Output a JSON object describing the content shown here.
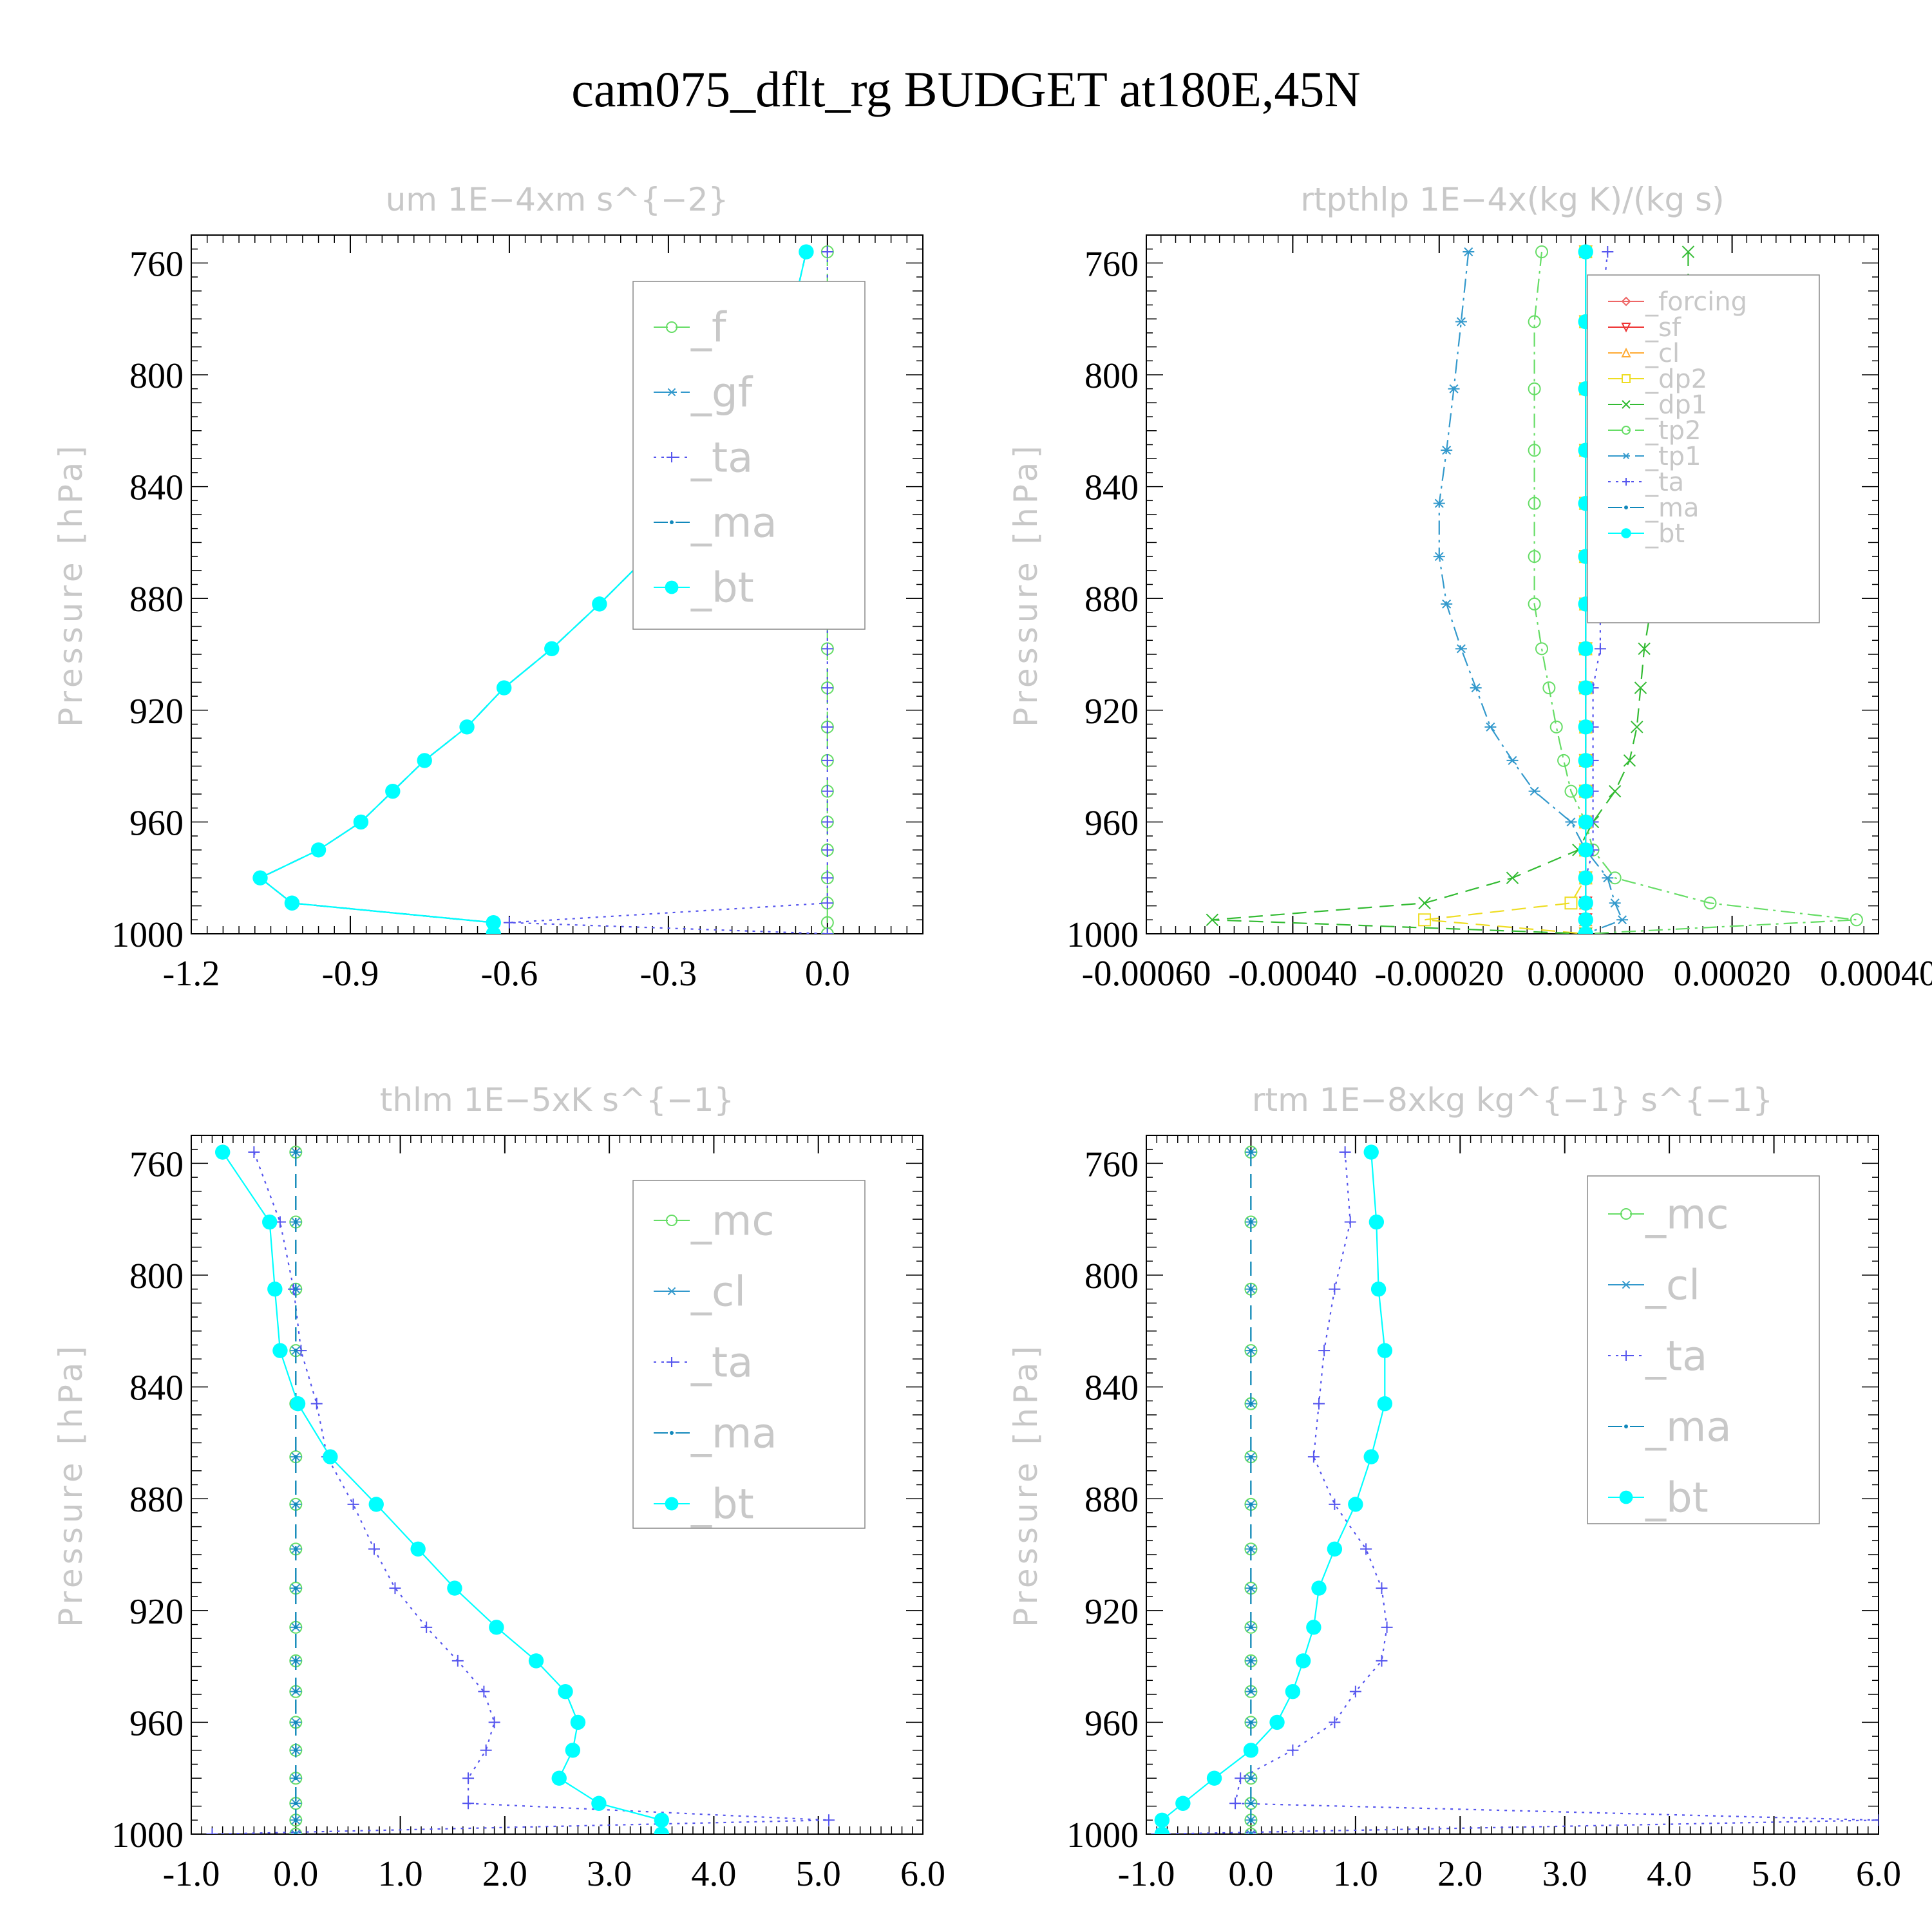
{
  "figure": {
    "title": "cam075_dflt_rg  BUDGET at180E,45N"
  },
  "chart_data": [
    {
      "type": "line",
      "title": "um   1E−4xm s^{−2}",
      "ylabel": "Pressure [hPa]",
      "xlabel": "",
      "ylim": [
        750,
        1000
      ],
      "xlim": [
        -1.2,
        0.18
      ],
      "yticks": [
        760,
        800,
        840,
        880,
        920,
        960,
        1000
      ],
      "xticks": [
        "-1.2",
        "-0.9",
        "-0.6",
        "-0.3",
        "0.0"
      ],
      "legend_placement": "top-right",
      "y": [
        756,
        781,
        805,
        827,
        846,
        865,
        882,
        898,
        912,
        926,
        938,
        949,
        960,
        970,
        980,
        989,
        996,
        1000
      ],
      "series": [
        {
          "name": "_f",
          "color": "#66dd66",
          "style": "dash",
          "marker": "circle",
          "values": [
            0,
            0,
            0,
            0,
            0,
            0,
            0,
            0,
            0,
            0,
            0,
            0,
            0,
            0,
            0,
            0,
            0,
            0
          ]
        },
        {
          "name": "_gf",
          "color": "#3399cc",
          "style": "dashdot",
          "marker": "star",
          "values": [
            -0.04,
            -0.07,
            -0.11,
            -0.17,
            -0.25,
            -0.34,
            -0.43,
            -0.52,
            -0.61,
            -0.68,
            -0.76,
            -0.82,
            -0.88,
            -0.96,
            -1.07,
            -1.01,
            -0.63,
            -0.63
          ]
        },
        {
          "name": "_ta",
          "color": "#5555ee",
          "style": "dot",
          "marker": "plus",
          "values": [
            0,
            0,
            0,
            0,
            0,
            0,
            0,
            0,
            0,
            0,
            0,
            0,
            0,
            0,
            0,
            0,
            -0.6,
            0
          ]
        },
        {
          "name": "_ma",
          "color": "#1188bb",
          "style": "dash",
          "marker": "dot",
          "values": [
            -0.04,
            -0.07,
            -0.11,
            -0.17,
            -0.25,
            -0.34,
            -0.43,
            -0.52,
            -0.61,
            -0.68,
            -0.76,
            -0.82,
            -0.88,
            -0.96,
            -1.07,
            -1.01,
            -0.63,
            -0.63
          ]
        },
        {
          "name": "_bt",
          "color": "#00ffff",
          "style": "solid",
          "marker": "bigdot",
          "values": [
            -0.04,
            -0.07,
            -0.11,
            -0.17,
            -0.25,
            -0.34,
            -0.43,
            -0.52,
            -0.61,
            -0.68,
            -0.76,
            -0.82,
            -0.88,
            -0.96,
            -1.07,
            -1.01,
            -0.63,
            -0.63
          ]
        }
      ]
    },
    {
      "type": "line",
      "title": "rtpthlp   1E−4x(kg K)/(kg s)",
      "ylabel": "Pressure [hPa]",
      "xlabel": "",
      "ylim": [
        750,
        1000
      ],
      "xlim": [
        -0.0006,
        0.0004
      ],
      "yticks": [
        760,
        800,
        840,
        880,
        920,
        960,
        1000
      ],
      "xticks": [
        "-0.00060",
        "-0.00040",
        "-0.00020",
        "0.00000",
        "0.00020",
        "0.00040"
      ],
      "legend_placement": "top-right",
      "y": [
        756,
        781,
        805,
        827,
        846,
        865,
        882,
        898,
        912,
        926,
        938,
        949,
        960,
        970,
        980,
        989,
        995,
        1000
      ],
      "series": [
        {
          "name": "_forcing",
          "color": "#ee6666",
          "style": "solid",
          "marker": "diamond",
          "values": [
            0,
            0,
            0,
            0,
            0,
            0,
            0,
            0,
            0,
            0,
            0,
            0,
            0,
            0,
            0,
            0,
            0,
            0
          ]
        },
        {
          "name": "_sf",
          "color": "#ee3333",
          "style": "solid",
          "marker": "triangle-down",
          "values": [
            0,
            0,
            0,
            0,
            0,
            0,
            0,
            0,
            0,
            0,
            0,
            0,
            0,
            0,
            0,
            0,
            0,
            0
          ]
        },
        {
          "name": "_cl",
          "color": "#ffaa33",
          "style": "dash",
          "marker": "triangle-up",
          "values": [
            0,
            0,
            0,
            0,
            0,
            0,
            0,
            0,
            0,
            0,
            0,
            0,
            0,
            0,
            0,
            0,
            0,
            0
          ]
        },
        {
          "name": "_dp2",
          "color": "#eedd22",
          "style": "dash",
          "marker": "square",
          "values": [
            0,
            0,
            0,
            0,
            0,
            0,
            0,
            0,
            0,
            0,
            0,
            0,
            0,
            0,
            0,
            -2e-05,
            -0.00022,
            0
          ]
        },
        {
          "name": "_dp1",
          "color": "#33bb33",
          "style": "dash",
          "marker": "x",
          "values": [
            0.00014,
            0.00014,
            0.00013,
            0.00012,
            0.00011,
            0.0001,
            9e-05,
            8e-05,
            7.5e-05,
            7e-05,
            6e-05,
            4e-05,
            1e-05,
            -1e-05,
            -0.0001,
            -0.00022,
            -0.00051,
            0
          ]
        },
        {
          "name": "_tp2",
          "color": "#66dd66",
          "style": "dashdot",
          "marker": "circle",
          "values": [
            -6e-05,
            -7e-05,
            -7e-05,
            -7e-05,
            -7e-05,
            -7e-05,
            -7e-05,
            -6e-05,
            -5e-05,
            -4e-05,
            -3e-05,
            -2e-05,
            0,
            1e-05,
            4e-05,
            0.00017,
            0.00037,
            0
          ]
        },
        {
          "name": "_tp1",
          "color": "#3399cc",
          "style": "dashdot",
          "marker": "star",
          "values": [
            -0.00016,
            -0.00017,
            -0.00018,
            -0.00019,
            -0.0002,
            -0.0002,
            -0.00019,
            -0.00017,
            -0.00015,
            -0.00013,
            -0.0001,
            -7e-05,
            -2e-05,
            0,
            3e-05,
            4e-05,
            5e-05,
            0
          ]
        },
        {
          "name": "_ta",
          "color": "#5555ee",
          "style": "dot",
          "marker": "plus",
          "values": [
            3e-05,
            2e-05,
            2e-05,
            2e-05,
            2e-05,
            2e-05,
            2e-05,
            2e-05,
            1e-05,
            1e-05,
            1e-05,
            1e-05,
            1e-05,
            1e-05,
            0,
            0,
            0,
            0
          ]
        },
        {
          "name": "_ma",
          "color": "#1188bb",
          "style": "dash",
          "marker": "dot",
          "values": [
            0,
            0,
            0,
            0,
            0,
            0,
            0,
            0,
            0,
            0,
            0,
            0,
            0,
            0,
            0,
            0,
            0,
            0
          ]
        },
        {
          "name": "_bt",
          "color": "#00ffff",
          "style": "solid",
          "marker": "bigdot",
          "values": [
            0,
            0,
            0,
            0,
            0,
            0,
            0,
            0,
            0,
            0,
            0,
            0,
            0,
            0,
            0,
            0,
            0,
            0
          ]
        }
      ]
    },
    {
      "type": "line",
      "title": "thlm   1E−5xK s^{−1}",
      "ylabel": "Pressure [hPa]",
      "xlabel": "",
      "ylim": [
        750,
        1000
      ],
      "xlim": [
        -1.0,
        6.0
      ],
      "yticks": [
        760,
        800,
        840,
        880,
        920,
        960,
        1000
      ],
      "xticks": [
        "-1.0",
        "0.0",
        "1.0",
        "2.0",
        "3.0",
        "4.0",
        "5.0",
        "6.0"
      ],
      "legend_placement": "top-right",
      "y": [
        756,
        781,
        805,
        827,
        846,
        865,
        882,
        898,
        912,
        926,
        938,
        949,
        960,
        970,
        980,
        989,
        995,
        1000
      ],
      "series": [
        {
          "name": "_mc",
          "color": "#66dd66",
          "style": "dash",
          "marker": "circle",
          "values": [
            0,
            0,
            0,
            0,
            0,
            0,
            0,
            0,
            0,
            0,
            0,
            0,
            0,
            0,
            0,
            0,
            0,
            0
          ]
        },
        {
          "name": "_cl",
          "color": "#3399cc",
          "style": "dash",
          "marker": "star",
          "values": [
            0,
            0,
            0,
            0,
            0,
            0,
            0,
            0,
            0,
            0,
            0,
            0,
            0,
            0,
            0,
            0,
            0,
            0
          ]
        },
        {
          "name": "_ta",
          "color": "#5555ee",
          "style": "dot",
          "marker": "plus",
          "values": [
            -0.4,
            -0.15,
            -0.02,
            0.05,
            0.2,
            0.3,
            0.55,
            0.75,
            0.95,
            1.25,
            1.55,
            1.8,
            1.9,
            1.82,
            1.65,
            1.65,
            5.1,
            -0.8
          ]
        },
        {
          "name": "_ma",
          "color": "#1188bb",
          "style": "dash",
          "marker": "dot",
          "values": [
            0,
            0,
            0,
            0,
            0,
            0,
            0,
            0,
            0,
            0,
            0,
            0,
            0,
            0,
            0,
            0,
            0,
            0
          ]
        },
        {
          "name": "_bt",
          "color": "#00ffff",
          "style": "solid",
          "marker": "bigdot",
          "values": [
            -0.7,
            -0.25,
            -0.2,
            -0.15,
            0.02,
            0.33,
            0.77,
            1.17,
            1.52,
            1.92,
            2.3,
            2.58,
            2.7,
            2.65,
            2.52,
            2.9,
            3.5,
            3.5
          ]
        }
      ]
    },
    {
      "type": "line",
      "title": "rtm   1E−8xkg kg^{−1} s^{−1}",
      "ylabel": "Pressure [hPa]",
      "xlabel": "",
      "ylim": [
        750,
        1000
      ],
      "xlim": [
        -1.0,
        6.0
      ],
      "yticks": [
        760,
        800,
        840,
        880,
        920,
        960,
        1000
      ],
      "xticks": [
        "-1.0",
        "0.0",
        "1.0",
        "2.0",
        "3.0",
        "4.0",
        "5.0",
        "6.0"
      ],
      "legend_placement": "top-right",
      "y": [
        756,
        781,
        805,
        827,
        846,
        865,
        882,
        898,
        912,
        926,
        938,
        949,
        960,
        970,
        980,
        989,
        995,
        1000
      ],
      "series": [
        {
          "name": "_mc",
          "color": "#66dd66",
          "style": "dash",
          "marker": "circle",
          "values": [
            0,
            0,
            0,
            0,
            0,
            0,
            0,
            0,
            0,
            0,
            0,
            0,
            0,
            0,
            0,
            0,
            0,
            0
          ]
        },
        {
          "name": "_cl",
          "color": "#3399cc",
          "style": "dash",
          "marker": "star",
          "values": [
            0,
            0,
            0,
            0,
            0,
            0,
            0,
            0,
            0,
            0,
            0,
            0,
            0,
            0,
            0,
            0,
            0,
            0
          ]
        },
        {
          "name": "_ta",
          "color": "#5555ee",
          "style": "dot",
          "marker": "plus",
          "values": [
            0.9,
            0.95,
            0.8,
            0.7,
            0.65,
            0.6,
            0.8,
            1.1,
            1.25,
            1.3,
            1.25,
            1.0,
            0.8,
            0.4,
            -0.1,
            -0.15,
            6.0,
            -0.9
          ]
        },
        {
          "name": "_ma",
          "color": "#1188bb",
          "style": "dash",
          "marker": "dot",
          "values": [
            0,
            0,
            0,
            0,
            0,
            0,
            0,
            0,
            0,
            0,
            0,
            0,
            0,
            0,
            0,
            0,
            0,
            0
          ]
        },
        {
          "name": "_bt",
          "color": "#00ffff",
          "style": "solid",
          "marker": "bigdot",
          "values": [
            1.15,
            1.2,
            1.22,
            1.28,
            1.28,
            1.15,
            1.0,
            0.8,
            0.65,
            0.6,
            0.5,
            0.4,
            0.25,
            0,
            -0.35,
            -0.65,
            -0.85,
            -0.85
          ]
        }
      ]
    }
  ]
}
